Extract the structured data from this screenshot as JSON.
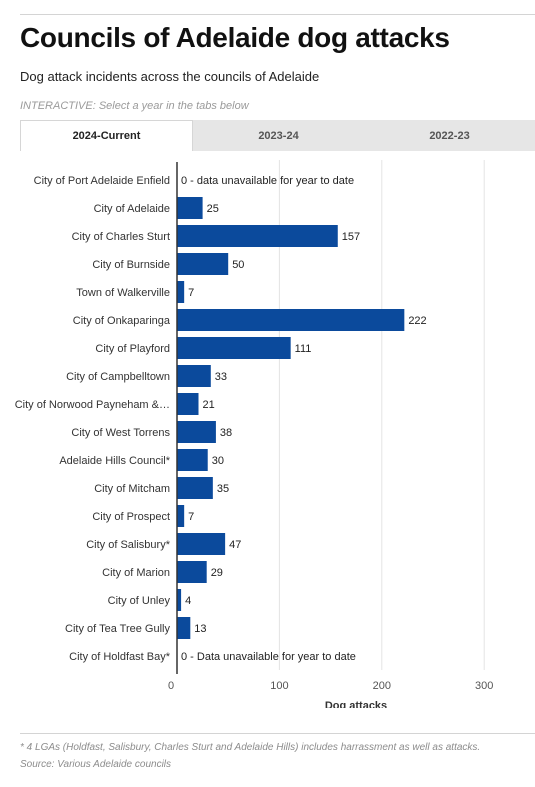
{
  "header": {
    "title": "Councils of Adelaide dog attacks",
    "subtitle": "Dog attack incidents across the councils of Adelaide",
    "instruction": "INTERACTIVE: Select a year in the tabs below"
  },
  "tabs": [
    {
      "label": "2024-Current",
      "active": true
    },
    {
      "label": "2023-24",
      "active": false
    },
    {
      "label": "2022-23",
      "active": false
    }
  ],
  "colors": {
    "bar": "#0b4a9c",
    "grid": "#e4e4e4",
    "axis": "#333333"
  },
  "chart_data": {
    "type": "bar",
    "orientation": "horizontal",
    "xlabel": "Dog attacks",
    "xlim": [
      0,
      300
    ],
    "xticks": [
      0,
      100,
      200,
      300
    ],
    "grid": true,
    "categories": [
      "City of Port Adelaide Enfield",
      "City of Adelaide",
      "City of Charles Sturt",
      "City of Burnside",
      "Town of Walkerville",
      "City of Onkaparinga",
      "City of Playford",
      "City of Campbelltown",
      "City of Norwood Payneham &…",
      "City of West Torrens",
      "Adelaide Hills Council*",
      "City of Mitcham",
      "City of Prospect",
      "City of Salisbury*",
      "City of Marion",
      "City of Unley",
      "City of Tea Tree Gully",
      "City of Holdfast Bay*"
    ],
    "values": [
      0,
      25,
      157,
      50,
      7,
      222,
      111,
      33,
      21,
      38,
      30,
      35,
      7,
      47,
      29,
      4,
      13,
      0
    ],
    "data_labels": [
      "0 - data unavailable for year to date",
      "25",
      "157",
      "50",
      "7",
      "222",
      "111",
      "33",
      "21",
      "38",
      "30",
      "35",
      "7",
      "47",
      "29",
      "4",
      "13",
      "0 - Data unavailable for year to date"
    ]
  },
  "footer": {
    "footnote": "* 4 LGAs (Holdfast, Salisbury, Charles Sturt and Adelaide Hills) includes harrassment as well as attacks.",
    "source": "Source: Various Adelaide councils"
  }
}
